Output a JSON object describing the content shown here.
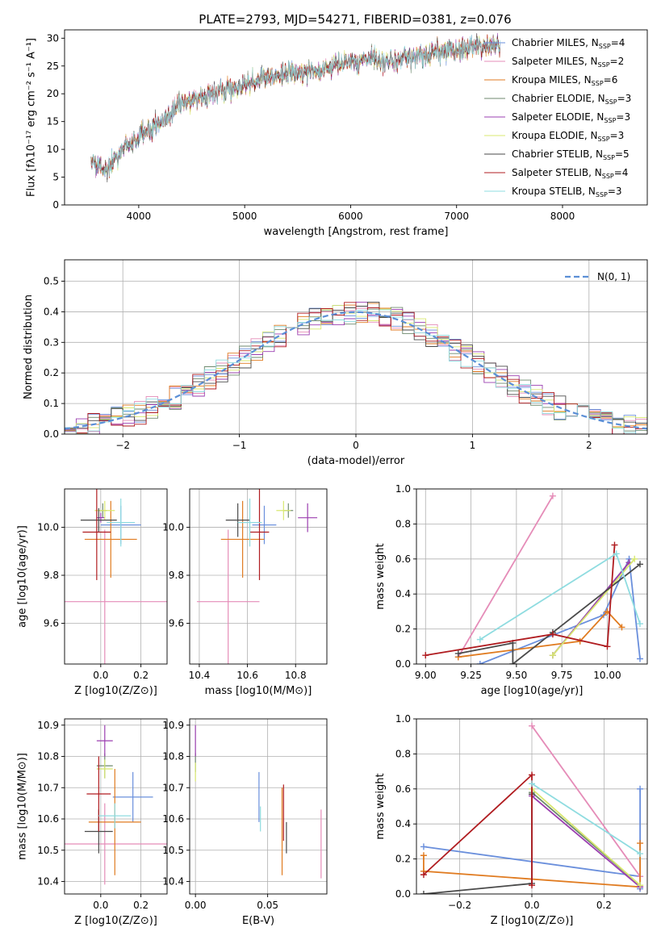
{
  "figure_title": "PLATE=2793, MJD=54271, FIBERID=0381, z=0.076",
  "colors": {
    "Chabrier MILES": "#6a8fdc",
    "Salpeter MILES": "#e58cb8",
    "Kroupa MILES": "#e07b20",
    "Chabrier ELODIE": "#6f8a6f",
    "Salpeter ELODIE": "#9b3fb0",
    "Kroupa ELODIE": "#d8e870",
    "Chabrier STELIB": "#4a4a4a",
    "Salpeter STELIB": "#b01c20",
    "Kroupa STELIB": "#8fdce0"
  },
  "chart_data": [
    {
      "id": "spectrum",
      "type": "line",
      "xlabel": "wavelength [Angstrom, rest frame]",
      "ylabel": "Flux [fλ10⁻¹⁷ erg cm⁻² s⁻¹ A⁻¹]",
      "xlim": [
        3300,
        8800
      ],
      "ylim": [
        0,
        31.5
      ],
      "xticks": [
        4000,
        5000,
        6000,
        7000,
        8000
      ],
      "yticks": [
        0,
        5,
        10,
        15,
        20,
        25,
        30
      ],
      "grid": false,
      "legend_position": "top-right",
      "legend": [
        "Chabrier MILES, N_SSP=4",
        "Salpeter MILES, N_SSP=2",
        "Kroupa MILES, N_SSP=6",
        "Chabrier ELODIE, N_SSP=3",
        "Salpeter ELODIE, N_SSP=3",
        "Kroupa ELODIE, N_SSP=3",
        "Chabrier STELIB, N_SSP=5",
        "Salpeter STELIB, N_SSP=4",
        "Kroupa STELIB, N_SSP=3"
      ],
      "continuum": [
        [
          3550,
          8
        ],
        [
          3700,
          6.5
        ],
        [
          3850,
          10
        ],
        [
          4000,
          12
        ],
        [
          4200,
          15
        ],
        [
          4400,
          18
        ],
        [
          4600,
          19.5
        ],
        [
          4800,
          20.5
        ],
        [
          5000,
          21.5
        ],
        [
          5200,
          23
        ],
        [
          5400,
          23.5
        ],
        [
          5600,
          24
        ],
        [
          5800,
          24.5
        ],
        [
          6000,
          26
        ],
        [
          6200,
          26.5
        ],
        [
          6400,
          26
        ],
        [
          6600,
          26.5
        ],
        [
          6800,
          27.5
        ],
        [
          7000,
          28
        ],
        [
          7200,
          28.5
        ],
        [
          7410,
          28.5
        ]
      ],
      "wavelength_range": [
        3550,
        7410
      ]
    },
    {
      "id": "residuals",
      "type": "step",
      "xlabel": "(data-model)/error",
      "ylabel": "Normed distribution",
      "xlim": [
        -2.5,
        2.5
      ],
      "ylim": [
        0,
        0.57
      ],
      "xticks": [
        -2,
        -1,
        0,
        1,
        2
      ],
      "yticks": [
        0.0,
        0.1,
        0.2,
        0.3,
        0.4,
        0.5
      ],
      "grid": true,
      "legend_position": "top-right",
      "legend": [
        "N(0, 1)"
      ],
      "bin_width": 0.1,
      "gaussian_mean": 0,
      "gaussian_sigma": 1
    },
    {
      "id": "age_vs_Z",
      "type": "errorbar",
      "xlabel": "Z [log10(Z/Z⊙)]",
      "ylabel": "age  [log10(age/yr)]",
      "xlim": [
        -0.18,
        0.33
      ],
      "ylim": [
        9.43,
        10.16
      ],
      "xticks": [
        0.0,
        0.2
      ],
      "yticks": [
        9.6,
        9.8,
        10.0
      ],
      "grid": true,
      "points": [
        {
          "model": "Chabrier MILES",
          "x": 0.1,
          "xerr": 0.1,
          "y": 10.01,
          "yerr": 0.08
        },
        {
          "model": "Salpeter MILES",
          "x": 0.02,
          "xerr": 0.31,
          "y": 9.69,
          "yerr": 0.3
        },
        {
          "model": "Kroupa MILES",
          "x": 0.05,
          "xerr": 0.13,
          "y": 9.95,
          "yerr": 0.16
        },
        {
          "model": "Chabrier ELODIE",
          "x": 0.01,
          "xerr": 0.02,
          "y": 10.07,
          "yerr": 0.03
        },
        {
          "model": "Salpeter ELODIE",
          "x": 0.0,
          "xerr": 0.02,
          "y": 10.04,
          "yerr": 0.02
        },
        {
          "model": "Kroupa ELODIE",
          "x": 0.02,
          "xerr": 0.05,
          "y": 10.07,
          "yerr": 0.04
        },
        {
          "model": "Chabrier STELIB",
          "x": -0.01,
          "xerr": 0.09,
          "y": 10.03,
          "yerr": 0.05
        },
        {
          "model": "Salpeter STELIB",
          "x": -0.02,
          "xerr": 0.07,
          "y": 9.98,
          "yerr": 0.2
        },
        {
          "model": "Kroupa STELIB",
          "x": 0.1,
          "xerr": 0.07,
          "y": 10.02,
          "yerr": 0.1
        }
      ]
    },
    {
      "id": "age_vs_mass",
      "type": "errorbar",
      "xlabel": "mass [log10(M/M⊙)]",
      "ylabel": "",
      "xlim": [
        10.36,
        10.93
      ],
      "ylim": [
        9.43,
        10.16
      ],
      "xticks": [
        10.4,
        10.6,
        10.8
      ],
      "yticks": [
        9.6,
        9.8,
        10.0
      ],
      "grid": true,
      "points": [
        {
          "model": "Chabrier MILES",
          "x": 10.67,
          "xerr": 0.05,
          "y": 10.01,
          "yerr": 0.08
        },
        {
          "model": "Salpeter MILES",
          "x": 10.52,
          "xerr": 0.13,
          "y": 9.69,
          "yerr": 0.3
        },
        {
          "model": "Kroupa MILES",
          "x": 10.58,
          "xerr": 0.09,
          "y": 9.95,
          "yerr": 0.16
        },
        {
          "model": "Chabrier ELODIE",
          "x": 10.77,
          "xerr": 0.02,
          "y": 10.07,
          "yerr": 0.03
        },
        {
          "model": "Salpeter ELODIE",
          "x": 10.85,
          "xerr": 0.04,
          "y": 10.04,
          "yerr": 0.06
        },
        {
          "model": "Kroupa ELODIE",
          "x": 10.75,
          "xerr": 0.03,
          "y": 10.07,
          "yerr": 0.04
        },
        {
          "model": "Chabrier STELIB",
          "x": 10.56,
          "xerr": 0.05,
          "y": 10.03,
          "yerr": 0.07
        },
        {
          "model": "Salpeter STELIB",
          "x": 10.65,
          "xerr": 0.04,
          "y": 9.98,
          "yerr": 0.2
        },
        {
          "model": "Kroupa STELIB",
          "x": 10.61,
          "xerr": 0.05,
          "y": 10.02,
          "yerr": 0.1
        }
      ]
    },
    {
      "id": "weight_vs_age",
      "type": "line",
      "xlabel": "age  [log10(age/yr)]",
      "ylabel": "mass weight",
      "xlim": [
        8.95,
        10.22
      ],
      "ylim": [
        0,
        1.0
      ],
      "xticks": [
        9.0,
        9.25,
        9.5,
        9.75,
        10.0
      ],
      "yticks": [
        0.0,
        0.2,
        0.4,
        0.6,
        0.8,
        1.0
      ],
      "grid": true,
      "series": [
        {
          "model": "Chabrier MILES",
          "points": [
            [
              9.3,
              0.0
            ],
            [
              9.98,
              0.28
            ],
            [
              10.12,
              0.6
            ],
            [
              10.18,
              0.03
            ]
          ]
        },
        {
          "model": "Salpeter MILES",
          "points": [
            [
              9.18,
              0.04
            ],
            [
              9.7,
              0.96
            ]
          ]
        },
        {
          "model": "Kroupa MILES",
          "points": [
            [
              9.18,
              0.04
            ],
            [
              9.85,
              0.13
            ],
            [
              10.0,
              0.3
            ],
            [
              10.08,
              0.21
            ]
          ]
        },
        {
          "model": "Chabrier ELODIE",
          "points": [
            [
              9.7,
              0.05
            ],
            [
              10.12,
              0.58
            ]
          ]
        },
        {
          "model": "Salpeter ELODIE",
          "points": [
            [
              9.7,
              0.05
            ],
            [
              10.12,
              0.58
            ]
          ]
        },
        {
          "model": "Kroupa ELODIE",
          "points": [
            [
              9.7,
              0.05
            ],
            [
              10.15,
              0.6
            ]
          ]
        },
        {
          "model": "Chabrier STELIB",
          "points": [
            [
              9.18,
              0.06
            ],
            [
              9.48,
              0.12
            ],
            [
              9.48,
              0.0
            ],
            [
              9.7,
              0.18
            ],
            [
              10.18,
              0.57
            ]
          ]
        },
        {
          "model": "Salpeter STELIB",
          "points": [
            [
              9.0,
              0.05
            ],
            [
              9.7,
              0.17
            ],
            [
              10.0,
              0.1
            ],
            [
              10.04,
              0.68
            ]
          ]
        },
        {
          "model": "Kroupa STELIB",
          "points": [
            [
              9.3,
              0.14
            ],
            [
              10.05,
              0.63
            ],
            [
              10.18,
              0.23
            ]
          ]
        }
      ]
    },
    {
      "id": "mass_vs_Z",
      "type": "errorbar",
      "xlabel": "Z [log10(Z/Z⊙)]",
      "ylabel": "mass [log10(M/M⊙)]",
      "xlim": [
        -0.18,
        0.33
      ],
      "ylim": [
        10.36,
        10.92
      ],
      "xticks": [
        0.0,
        0.2
      ],
      "yticks": [
        10.4,
        10.5,
        10.6,
        10.7,
        10.8,
        10.9
      ],
      "grid": true,
      "points": [
        {
          "model": "Chabrier MILES",
          "x": 0.16,
          "xerr": 0.1,
          "y": 10.67,
          "yerr": 0.08
        },
        {
          "model": "Salpeter MILES",
          "x": 0.02,
          "xerr": 0.31,
          "y": 10.52,
          "yerr": 0.13
        },
        {
          "model": "Kroupa MILES",
          "x": 0.07,
          "xerr": 0.13,
          "y": 10.59,
          "yerr": 0.17
        },
        {
          "model": "Chabrier ELODIE",
          "x": 0.02,
          "xerr": 0.04,
          "y": 10.77,
          "yerr": 0.04
        },
        {
          "model": "Salpeter ELODIE",
          "x": 0.02,
          "xerr": 0.04,
          "y": 10.85,
          "yerr": 0.05
        },
        {
          "model": "Kroupa ELODIE",
          "x": 0.02,
          "xerr": 0.04,
          "y": 10.76,
          "yerr": 0.03
        },
        {
          "model": "Chabrier STELIB",
          "x": -0.01,
          "xerr": 0.07,
          "y": 10.56,
          "yerr": 0.07
        },
        {
          "model": "Salpeter STELIB",
          "x": -0.01,
          "xerr": 0.06,
          "y": 10.68,
          "yerr": 0.12
        },
        {
          "model": "Kroupa STELIB",
          "x": 0.07,
          "xerr": 0.08,
          "y": 10.61,
          "yerr": 0.04
        }
      ]
    },
    {
      "id": "mass_vs_ebv",
      "type": "errorbar",
      "xlabel": "E(B-V)",
      "ylabel": "",
      "xlim": [
        -0.004,
        0.091
      ],
      "ylim": [
        10.36,
        10.92
      ],
      "xticks": [
        0.0,
        0.05
      ],
      "yticks": [
        10.4,
        10.5,
        10.6,
        10.7,
        10.8,
        10.9
      ],
      "grid": true,
      "points": [
        {
          "model": "Chabrier MILES",
          "x": 0.044,
          "xerr": 0.0,
          "y": 10.67,
          "yerr": 0.08
        },
        {
          "model": "Salpeter MILES",
          "x": 0.087,
          "xerr": 0.0,
          "y": 10.52,
          "yerr": 0.11
        },
        {
          "model": "Kroupa MILES",
          "x": 0.06,
          "xerr": 0.0,
          "y": 10.56,
          "yerr": 0.14
        },
        {
          "model": "Chabrier ELODIE",
          "x": 0.0,
          "xerr": 0.0,
          "y": 10.78,
          "yerr": 0.03
        },
        {
          "model": "Salpeter ELODIE",
          "x": 0.0,
          "xerr": 0.0,
          "y": 10.85,
          "yerr": 0.05
        },
        {
          "model": "Kroupa ELODIE",
          "x": 0.0,
          "xerr": 0.0,
          "y": 10.75,
          "yerr": 0.03
        },
        {
          "model": "Chabrier STELIB",
          "x": 0.063,
          "xerr": 0.0,
          "y": 10.54,
          "yerr": 0.05
        },
        {
          "model": "Salpeter STELIB",
          "x": 0.061,
          "xerr": 0.0,
          "y": 10.62,
          "yerr": 0.09
        },
        {
          "model": "Kroupa STELIB",
          "x": 0.045,
          "xerr": 0.0,
          "y": 10.6,
          "yerr": 0.04
        }
      ]
    },
    {
      "id": "weight_vs_Z",
      "type": "line",
      "xlabel": "Z [log10(Z/Z⊙)]",
      "ylabel": "mass weight",
      "xlim": [
        -0.32,
        0.32
      ],
      "ylim": [
        0,
        1.0
      ],
      "xticks": [
        -0.2,
        0.0,
        0.2
      ],
      "yticks": [
        0.0,
        0.2,
        0.4,
        0.6,
        0.8,
        1.0
      ],
      "grid": true,
      "series": [
        {
          "model": "Chabrier MILES",
          "points": [
            [
              -0.3,
              0.27
            ],
            [
              0.3,
              0.1
            ],
            [
              0.3,
              0.6
            ],
            [
              0.3,
              0.03
            ]
          ]
        },
        {
          "model": "Salpeter MILES",
          "points": [
            [
              0.0,
              0.96
            ],
            [
              0.3,
              0.1
            ]
          ]
        },
        {
          "model": "Kroupa MILES",
          "points": [
            [
              -0.3,
              0.22
            ],
            [
              -0.3,
              0.13
            ],
            [
              0.3,
              0.04
            ],
            [
              0.3,
              0.29
            ]
          ]
        },
        {
          "model": "Chabrier ELODIE",
          "points": [
            [
              0.0,
              0.58
            ],
            [
              0.3,
              0.05
            ]
          ]
        },
        {
          "model": "Salpeter ELODIE",
          "points": [
            [
              0.0,
              0.56
            ],
            [
              0.3,
              0.04
            ]
          ]
        },
        {
          "model": "Kroupa ELODIE",
          "points": [
            [
              0.0,
              0.6
            ],
            [
              0.3,
              0.05
            ]
          ]
        },
        {
          "model": "Chabrier STELIB",
          "points": [
            [
              -0.3,
              0.0
            ],
            [
              0.0,
              0.06
            ],
            [
              0.0,
              0.57
            ]
          ]
        },
        {
          "model": "Salpeter STELIB",
          "points": [
            [
              -0.3,
              0.11
            ],
            [
              0.0,
              0.68
            ],
            [
              0.0,
              0.05
            ]
          ]
        },
        {
          "model": "Kroupa STELIB",
          "points": [
            [
              0.0,
              0.63
            ],
            [
              0.3,
              0.23
            ]
          ]
        }
      ]
    }
  ]
}
